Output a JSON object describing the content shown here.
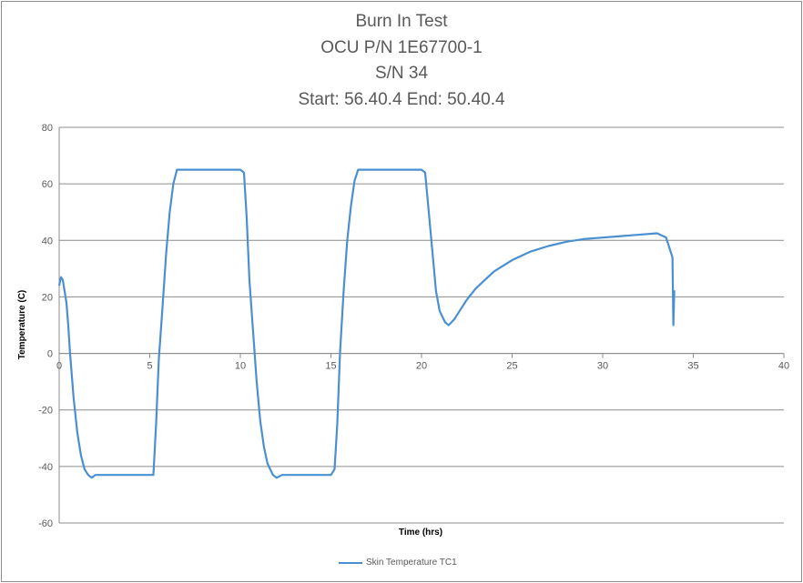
{
  "chart_data": {
    "type": "line",
    "title_lines": [
      "Burn In Test",
      "OCU P/N 1E67700-1",
      "S/N 34",
      "Start: 56.40.4 End: 50.40.4"
    ],
    "xlabel": "Time (hrs)",
    "ylabel": "Temperature (C)",
    "xlim": [
      0,
      40
    ],
    "ylim": [
      -60,
      80
    ],
    "xticks": [
      "0",
      "5",
      "10",
      "15",
      "20",
      "25",
      "30",
      "35",
      "40"
    ],
    "yticks": [
      "80",
      "60",
      "40",
      "20",
      "0",
      "-20",
      "-40",
      "-60"
    ],
    "grid": "horizontal",
    "legend_position": "bottom",
    "series": [
      {
        "name": "Skin Temperature TC1",
        "color": "#4a90d0",
        "x": [
          0.0,
          0.1,
          0.2,
          0.3,
          0.4,
          0.5,
          0.6,
          0.8,
          1.0,
          1.2,
          1.4,
          1.6,
          1.8,
          2.0,
          2.5,
          3.0,
          3.5,
          4.0,
          4.5,
          5.0,
          5.2,
          5.35,
          5.5,
          5.7,
          5.9,
          6.1,
          6.3,
          6.5,
          6.8,
          7.2,
          7.6,
          8.0,
          8.5,
          9.0,
          9.5,
          10.0,
          10.2,
          10.35,
          10.5,
          10.7,
          10.9,
          11.1,
          11.3,
          11.5,
          11.8,
          12.0,
          12.3,
          12.6,
          13.0,
          13.5,
          14.0,
          14.5,
          15.0,
          15.2,
          15.35,
          15.5,
          15.7,
          15.9,
          16.1,
          16.3,
          16.5,
          16.8,
          17.2,
          17.6,
          18.0,
          18.5,
          19.0,
          19.5,
          20.0,
          20.2,
          20.4,
          20.6,
          20.8,
          21.0,
          21.3,
          21.5,
          21.8,
          22.0,
          22.5,
          23.0,
          24.0,
          25.0,
          26.0,
          27.0,
          28.0,
          29.0,
          30.0,
          31.0,
          32.0,
          33.0,
          33.5,
          33.7,
          33.85,
          33.9,
          33.95,
          34.0
        ],
        "y": [
          24,
          27,
          26,
          22,
          18,
          10,
          0,
          -16,
          -28,
          -36,
          -41,
          -43,
          -44,
          -43,
          -43,
          -43,
          -43,
          -43,
          -43,
          -43,
          -43,
          -25,
          -2,
          16,
          35,
          50,
          60,
          65,
          65,
          65,
          65,
          65,
          65,
          65,
          65,
          65,
          64,
          48,
          26,
          8,
          -10,
          -24,
          -33,
          -39,
          -43,
          -44,
          -43,
          -43,
          -43,
          -43,
          -43,
          -43,
          -43,
          -41,
          -25,
          0,
          22,
          40,
          52,
          61,
          65,
          65,
          65,
          65,
          65,
          65,
          65,
          65,
          65,
          64,
          50,
          36,
          22,
          15,
          11,
          10,
          12,
          14,
          19,
          23,
          29,
          33,
          36,
          38,
          39.5,
          40.5,
          41,
          41.5,
          42,
          42.5,
          41,
          37,
          34,
          10,
          22,
          22
        ]
      }
    ]
  }
}
